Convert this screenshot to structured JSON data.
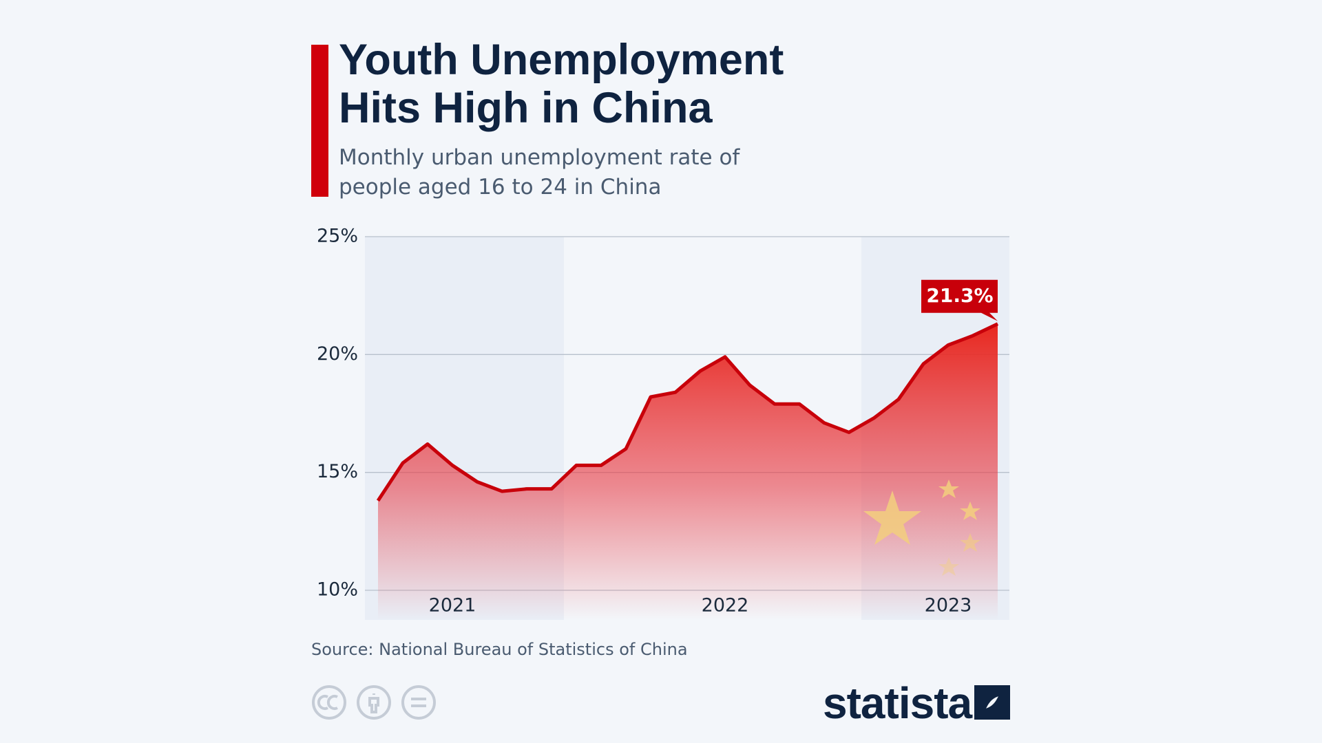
{
  "chart_data": {
    "type": "line",
    "title": "Youth Unemployment Hits High in China",
    "subtitle": "Monthly urban unemployment rate of people aged 16 to 24 in China",
    "categories": [
      null,
      null,
      null,
      "2021",
      null,
      null,
      null,
      null,
      null,
      null,
      null,
      null,
      null,
      null,
      "2022",
      null,
      null,
      null,
      null,
      null,
      null,
      null,
      null,
      "2023",
      null,
      null
    ],
    "series": [
      {
        "name": "Youth unemployment rate",
        "color": "#c8000a",
        "values": [
          13.8,
          15.4,
          16.2,
          15.3,
          14.6,
          14.2,
          14.3,
          14.3,
          15.3,
          15.3,
          16.0,
          18.2,
          18.4,
          19.3,
          19.9,
          18.7,
          17.9,
          17.9,
          17.1,
          16.7,
          17.3,
          18.1,
          19.6,
          20.4,
          20.8,
          21.3
        ],
        "value_labels": [
          null,
          null,
          null,
          null,
          null,
          null,
          null,
          null,
          null,
          null,
          null,
          null,
          null,
          null,
          null,
          null,
          null,
          null,
          null,
          null,
          null,
          null,
          null,
          null,
          null,
          "21.3%"
        ]
      }
    ],
    "ylim": [
      10,
      25
    ],
    "yticks": [
      {
        "value": 10,
        "label": "10%"
      },
      {
        "value": 15,
        "label": "15%"
      },
      {
        "value": 20,
        "label": "20%"
      },
      {
        "value": 25,
        "label": "25%"
      }
    ],
    "grid": true,
    "source": "Source: National Bureau of Statistics of China",
    "brand": "statista"
  }
}
